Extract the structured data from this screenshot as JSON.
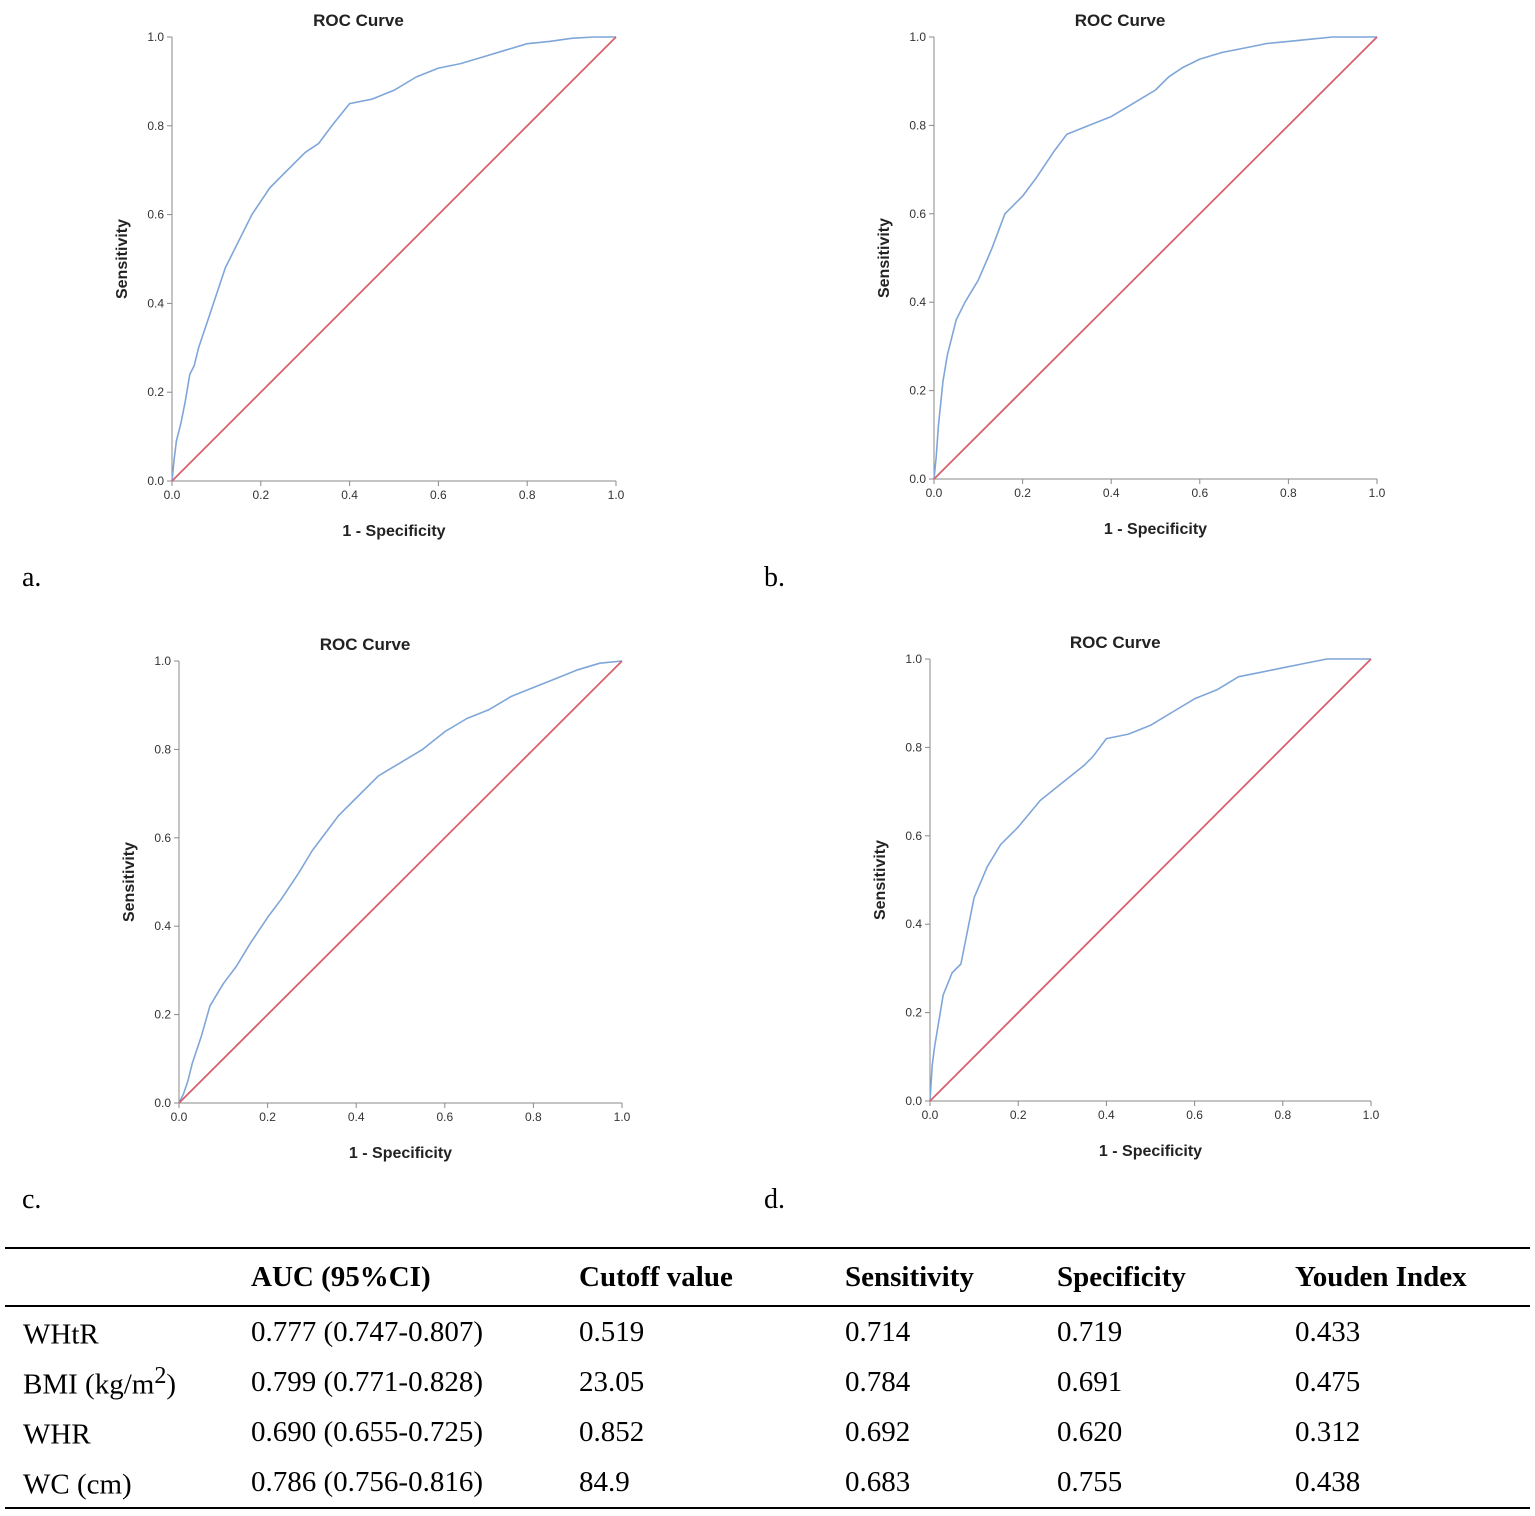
{
  "chart_data": [
    {
      "panel": "a.",
      "type": "line",
      "title": "ROC Curve",
      "xlabel": "1 - Specificity",
      "ylabel": "Sensitivity",
      "xlim": [
        0,
        1
      ],
      "ylim": [
        0,
        1
      ],
      "ticks": [
        "0.0",
        "0.2",
        "0.4",
        "0.6",
        "0.8",
        "1.0"
      ],
      "series": [
        {
          "name": "ROC",
          "color": "#7fa6d9",
          "x": [
            0,
            0.005,
            0.01,
            0.02,
            0.03,
            0.04,
            0.05,
            0.06,
            0.08,
            0.1,
            0.12,
            0.15,
            0.18,
            0.2,
            0.22,
            0.25,
            0.28,
            0.3,
            0.33,
            0.36,
            0.4,
            0.45,
            0.5,
            0.55,
            0.6,
            0.65,
            0.7,
            0.75,
            0.8,
            0.85,
            0.9,
            0.95,
            1.0
          ],
          "y": [
            0,
            0.05,
            0.09,
            0.13,
            0.18,
            0.24,
            0.26,
            0.3,
            0.36,
            0.42,
            0.48,
            0.54,
            0.6,
            0.63,
            0.66,
            0.69,
            0.72,
            0.74,
            0.76,
            0.8,
            0.85,
            0.86,
            0.88,
            0.91,
            0.93,
            0.94,
            0.955,
            0.97,
            0.985,
            0.99,
            0.997,
            1.0,
            1.0
          ]
        },
        {
          "name": "Reference",
          "color": "#d9616e",
          "x": [
            0,
            1
          ],
          "y": [
            0,
            1
          ]
        }
      ]
    },
    {
      "panel": "b.",
      "type": "line",
      "title": "ROC Curve",
      "xlabel": "1 - Specificity",
      "ylabel": "Sensitivity",
      "xlim": [
        0,
        1
      ],
      "ylim": [
        0,
        1
      ],
      "ticks": [
        "0.0",
        "0.2",
        "0.4",
        "0.6",
        "0.8",
        "1.0"
      ],
      "series": [
        {
          "name": "ROC",
          "color": "#7fa6d9",
          "x": [
            0,
            0.005,
            0.01,
            0.02,
            0.03,
            0.05,
            0.07,
            0.1,
            0.13,
            0.16,
            0.2,
            0.23,
            0.27,
            0.3,
            0.35,
            0.4,
            0.45,
            0.5,
            0.53,
            0.56,
            0.6,
            0.65,
            0.7,
            0.75,
            0.8,
            0.85,
            0.9,
            0.95,
            1.0
          ],
          "y": [
            0,
            0.05,
            0.12,
            0.22,
            0.28,
            0.36,
            0.4,
            0.45,
            0.52,
            0.6,
            0.64,
            0.68,
            0.74,
            0.78,
            0.8,
            0.82,
            0.85,
            0.88,
            0.91,
            0.93,
            0.95,
            0.965,
            0.975,
            0.985,
            0.99,
            0.995,
            1.0,
            1.0,
            1.0
          ]
        },
        {
          "name": "Reference",
          "color": "#d9616e",
          "x": [
            0,
            1
          ],
          "y": [
            0,
            1
          ]
        }
      ]
    },
    {
      "panel": "c.",
      "type": "line",
      "title": "ROC Curve",
      "xlabel": "1 - Specificity",
      "ylabel": "Sensitivity",
      "xlim": [
        0,
        1
      ],
      "ylim": [
        0,
        1
      ],
      "ticks": [
        "0.0",
        "0.2",
        "0.4",
        "0.6",
        "0.8",
        "1.0"
      ],
      "series": [
        {
          "name": "ROC",
          "color": "#7fa6d9",
          "x": [
            0,
            0.01,
            0.02,
            0.03,
            0.05,
            0.07,
            0.1,
            0.13,
            0.16,
            0.2,
            0.23,
            0.27,
            0.3,
            0.33,
            0.36,
            0.4,
            0.45,
            0.5,
            0.55,
            0.6,
            0.65,
            0.7,
            0.75,
            0.8,
            0.85,
            0.9,
            0.95,
            1.0
          ],
          "y": [
            0,
            0.02,
            0.05,
            0.09,
            0.15,
            0.22,
            0.27,
            0.31,
            0.36,
            0.42,
            0.46,
            0.52,
            0.57,
            0.61,
            0.65,
            0.69,
            0.74,
            0.77,
            0.8,
            0.84,
            0.87,
            0.89,
            0.92,
            0.94,
            0.96,
            0.98,
            0.995,
            1.0
          ]
        },
        {
          "name": "Reference",
          "color": "#d9616e",
          "x": [
            0,
            1
          ],
          "y": [
            0,
            1
          ]
        }
      ]
    },
    {
      "panel": "d.",
      "type": "line",
      "title": "ROC Curve",
      "xlabel": "1 - Specificity",
      "ylabel": "Sensitivity",
      "xlim": [
        0,
        1
      ],
      "ylim": [
        0,
        1
      ],
      "ticks": [
        "0.0",
        "0.2",
        "0.4",
        "0.6",
        "0.8",
        "1.0"
      ],
      "series": [
        {
          "name": "ROC",
          "color": "#7fa6d9",
          "x": [
            0,
            0.005,
            0.01,
            0.02,
            0.03,
            0.05,
            0.07,
            0.08,
            0.1,
            0.13,
            0.16,
            0.2,
            0.25,
            0.3,
            0.35,
            0.37,
            0.4,
            0.45,
            0.5,
            0.55,
            0.6,
            0.65,
            0.7,
            0.75,
            0.8,
            0.85,
            0.9,
            0.95,
            1.0
          ],
          "y": [
            0,
            0.08,
            0.12,
            0.18,
            0.24,
            0.29,
            0.31,
            0.36,
            0.46,
            0.53,
            0.58,
            0.62,
            0.68,
            0.72,
            0.76,
            0.78,
            0.82,
            0.83,
            0.85,
            0.88,
            0.91,
            0.93,
            0.96,
            0.97,
            0.98,
            0.99,
            1.0,
            1.0,
            1.0
          ]
        },
        {
          "name": "Reference",
          "color": "#d9616e",
          "x": [
            0,
            1
          ],
          "y": [
            0,
            1
          ]
        }
      ]
    }
  ],
  "table": {
    "headers": [
      "",
      "AUC (95%CI)",
      "Cutoff value",
      "Sensitivity",
      "Specificity",
      "Youden Index"
    ],
    "rows": [
      {
        "name": "WHtR",
        "sup": "",
        "unit_tail": "",
        "auc": "0.777 (0.747-0.807)",
        "cutoff": "0.519",
        "sens": "0.714",
        "spec": "0.719",
        "youden": "0.433"
      },
      {
        "name": "BMI (kg/m",
        "sup": "2",
        "unit_tail": ")",
        "auc": "0.799 (0.771-0.828)",
        "cutoff": "23.05",
        "sens": "0.784",
        "spec": "0.691",
        "youden": "0.475"
      },
      {
        "name": "WHR",
        "sup": "",
        "unit_tail": "",
        "auc": "0.690 (0.655-0.725)",
        "cutoff": "0.852",
        "sens": "0.692",
        "spec": "0.620",
        "youden": "0.312"
      },
      {
        "name": "WC (cm)",
        "sup": "",
        "unit_tail": "",
        "auc": "0.786 (0.756-0.816)",
        "cutoff": "84.9",
        "sens": "0.683",
        "spec": "0.755",
        "youden": "0.438"
      }
    ]
  }
}
